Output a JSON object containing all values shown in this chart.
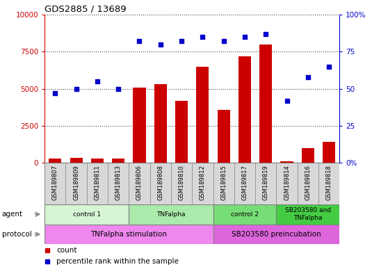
{
  "title": "GDS2885 / 13689",
  "samples": [
    "GSM189807",
    "GSM189809",
    "GSM189811",
    "GSM189813",
    "GSM189806",
    "GSM189808",
    "GSM189810",
    "GSM189812",
    "GSM189815",
    "GSM189817",
    "GSM189819",
    "GSM189814",
    "GSM189816",
    "GSM189818"
  ],
  "counts": [
    300,
    350,
    280,
    290,
    5100,
    5300,
    4200,
    6500,
    3600,
    7200,
    8000,
    100,
    1000,
    1400
  ],
  "percentile_ranks": [
    47,
    50,
    55,
    50,
    82,
    80,
    82,
    85,
    82,
    85,
    87,
    42,
    58,
    65
  ],
  "bar_color": "#cc0000",
  "dot_color": "#0000cc",
  "ylim_left": [
    0,
    10000
  ],
  "ylim_right": [
    0,
    100
  ],
  "yticks_left": [
    0,
    2500,
    5000,
    7500,
    10000
  ],
  "ytick_labels_left": [
    "0",
    "2500",
    "5000",
    "7500",
    "10000"
  ],
  "yticks_right": [
    0,
    25,
    50,
    75,
    100
  ],
  "ytick_labels_right": [
    "0%",
    "25",
    "50",
    "75",
    "100%"
  ],
  "agent_groups": [
    {
      "label": "control 1",
      "start": 0,
      "end": 4,
      "color": "#d5f5d5"
    },
    {
      "label": "TNFalpha",
      "start": 4,
      "end": 8,
      "color": "#aaeaaa"
    },
    {
      "label": "control 2",
      "start": 8,
      "end": 11,
      "color": "#77dd77"
    },
    {
      "label": "SB203580 and\nTNFalpha",
      "start": 11,
      "end": 14,
      "color": "#44cc44"
    }
  ],
  "protocol_groups": [
    {
      "label": "TNFalpha stimulation",
      "start": 0,
      "end": 8,
      "color": "#ee88ee"
    },
    {
      "label": "SB203580 preincubation",
      "start": 8,
      "end": 14,
      "color": "#dd66dd"
    }
  ],
  "legend_count_label": "count",
  "legend_pct_label": "percentile rank within the sample",
  "grid_color": "#444444",
  "bg_color": "#ffffff",
  "tick_label_color_left": "#cc0000",
  "tick_label_color_right": "#0000cc",
  "sample_bg_color": "#d8d8d8",
  "sample_border_color": "#888888"
}
